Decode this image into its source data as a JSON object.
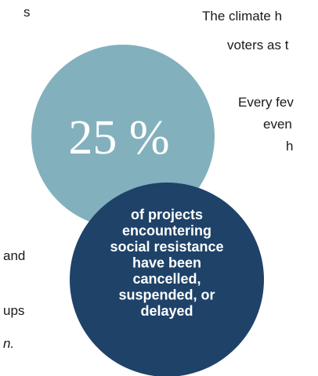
{
  "left_fragments": [
    "s",
    "and",
    "ups",
    "n."
  ],
  "right_fragments": [
    "The climate h",
    "voters as t",
    "Every fev",
    "even",
    "h"
  ],
  "stat_circle": {
    "text": "25 %"
  },
  "note_circle": {
    "lines": [
      "of projects",
      "encountering",
      "social resistance",
      "have been",
      "cancelled,",
      "suspended, or",
      "delayed"
    ]
  }
}
